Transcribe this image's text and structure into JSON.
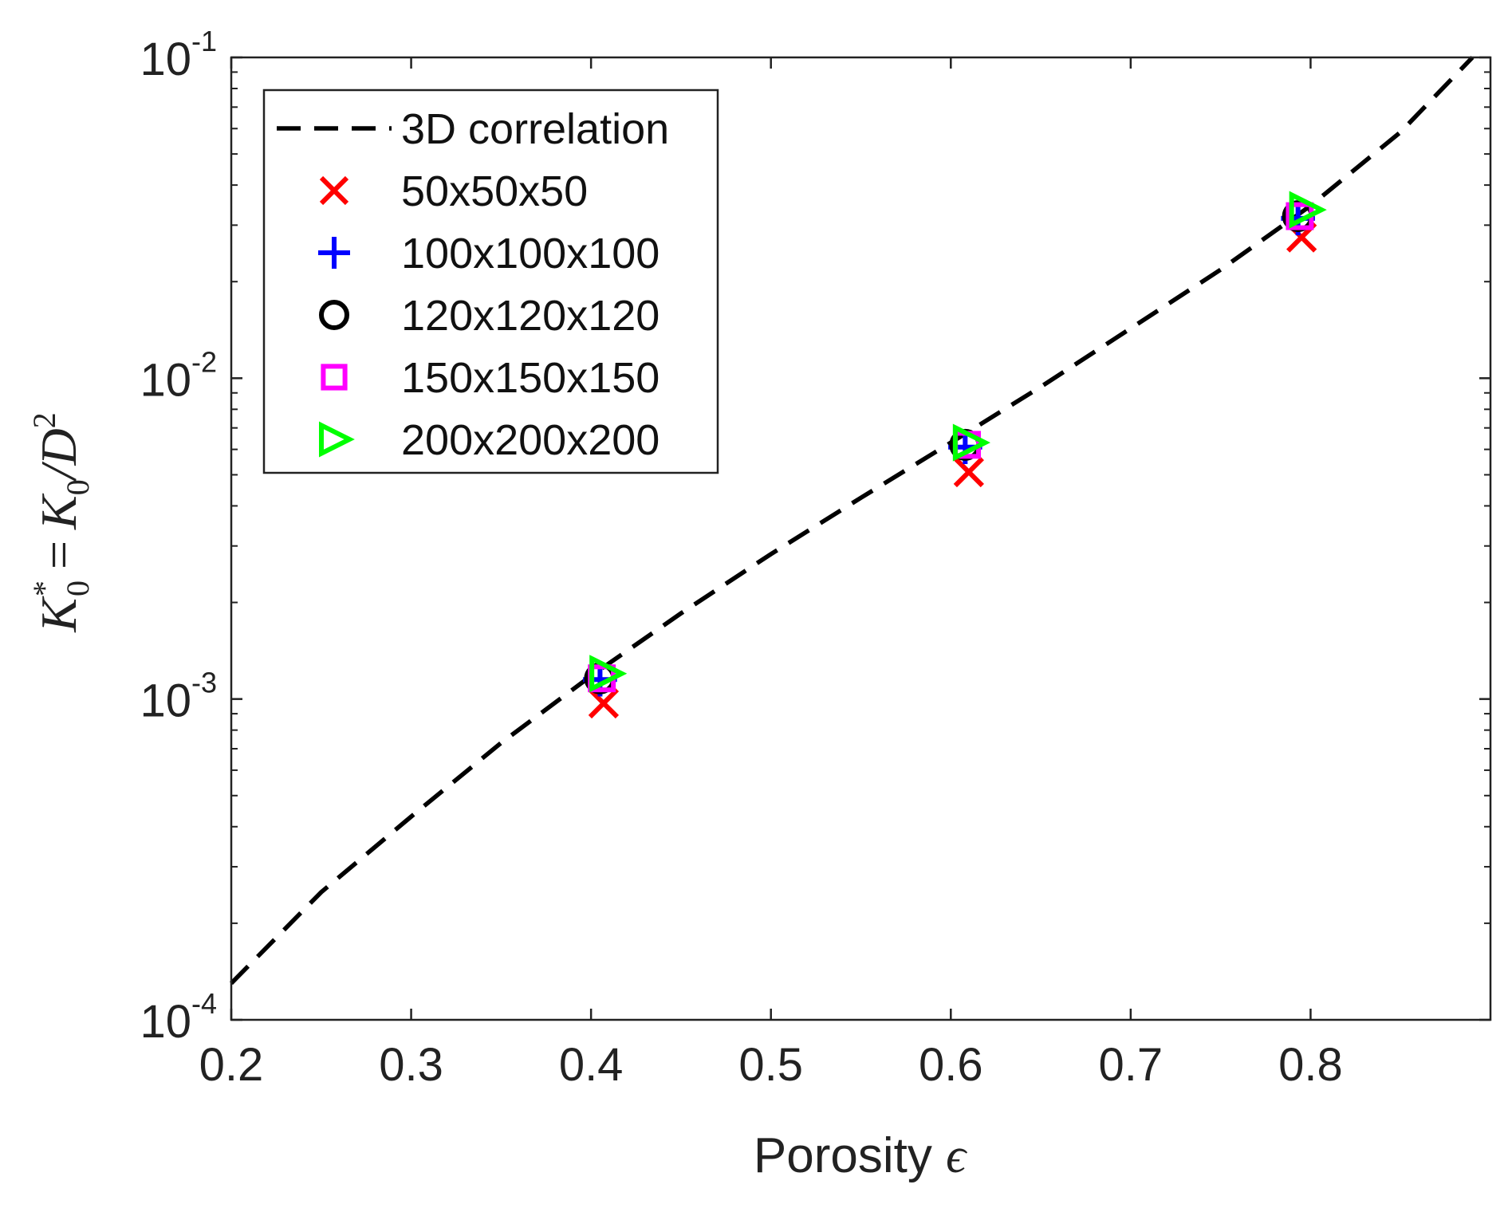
{
  "chart_data": {
    "type": "scatter",
    "title": "",
    "xlabel": "Porosity",
    "xlabel_symbol": "ϵ",
    "ylabel": {
      "K": "K",
      "star": "*",
      "zero": "0",
      "eq": "=",
      "K2": "K",
      "zero2": "0",
      "slash": "/D",
      "sq": "2"
    },
    "x_range": [
      0.2,
      0.9
    ],
    "y_range": [
      0.0001,
      0.1
    ],
    "y_scale": "log",
    "x_ticks": [
      {
        "value": 0.2,
        "label": "0.2"
      },
      {
        "value": 0.3,
        "label": "0.3"
      },
      {
        "value": 0.4,
        "label": "0.4"
      },
      {
        "value": 0.5,
        "label": "0.5"
      },
      {
        "value": 0.6,
        "label": "0.6"
      },
      {
        "value": 0.7,
        "label": "0.7"
      },
      {
        "value": 0.8,
        "label": "0.8"
      }
    ],
    "y_ticks": [
      {
        "value": 0.0001,
        "base": "10",
        "exp": "-4"
      },
      {
        "value": 0.001,
        "base": "10",
        "exp": "-3"
      },
      {
        "value": 0.01,
        "base": "10",
        "exp": "-2"
      },
      {
        "value": 0.1,
        "base": "10",
        "exp": "-1"
      }
    ],
    "legend_position": "top-left",
    "series": [
      {
        "name": "3D correlation",
        "style": "dashed-line",
        "color": "#000000",
        "points": [
          [
            0.2,
            0.00013
          ],
          [
            0.25,
            0.00025
          ],
          [
            0.3,
            0.00043
          ],
          [
            0.35,
            0.00073
          ],
          [
            0.4,
            0.00118
          ],
          [
            0.45,
            0.00185
          ],
          [
            0.5,
            0.00283
          ],
          [
            0.55,
            0.00424
          ],
          [
            0.6,
            0.0063
          ],
          [
            0.65,
            0.0094
          ],
          [
            0.7,
            0.0143
          ],
          [
            0.75,
            0.0218
          ],
          [
            0.8,
            0.0345
          ],
          [
            0.85,
            0.0585
          ],
          [
            0.89,
            0.1
          ]
        ]
      },
      {
        "name": "50x50x50",
        "marker": "x",
        "color": "#ff0000",
        "x": [
          0.407,
          0.61,
          0.795
        ],
        "y": [
          0.00097,
          0.0051,
          0.0275
        ]
      },
      {
        "name": "100x100x100",
        "marker": "+",
        "color": "#0000ff",
        "x": [
          0.405,
          0.608,
          0.793
        ],
        "y": [
          0.00115,
          0.0061,
          0.0315
        ]
      },
      {
        "name": "120x120x120",
        "marker": "o",
        "color": "#000000",
        "x": [
          0.405,
          0.608,
          0.793
        ],
        "y": [
          0.00116,
          0.0062,
          0.032
        ]
      },
      {
        "name": "150x150x150",
        "marker": "s",
        "color": "#ff00ff",
        "x": [
          0.406,
          0.609,
          0.794
        ],
        "y": [
          0.00116,
          0.0062,
          0.032
        ]
      },
      {
        "name": "200x200x200",
        "marker": ">",
        "color": "#00ff00",
        "x": [
          0.408,
          0.61,
          0.797
        ],
        "y": [
          0.0012,
          0.0063,
          0.0335
        ]
      }
    ]
  }
}
